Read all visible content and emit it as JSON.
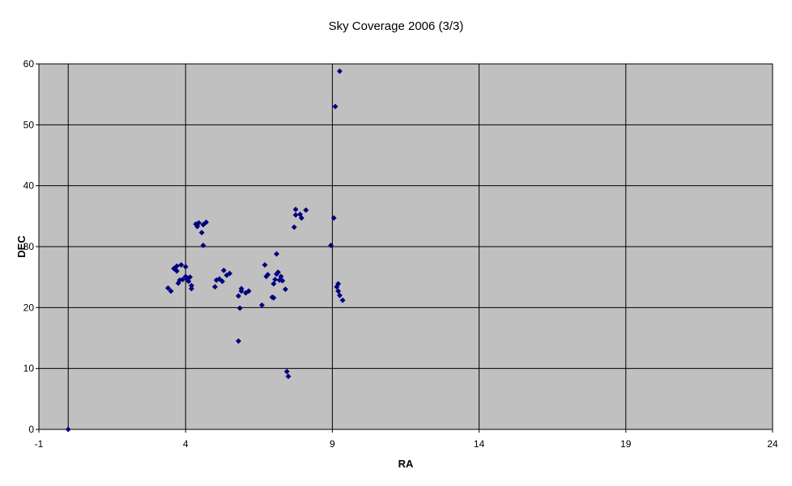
{
  "chart_data": {
    "type": "scatter",
    "title": "Sky Coverage 2006 (3/3)",
    "xlabel": "RA",
    "ylabel": "DEC",
    "xlim": [
      -1,
      24
    ],
    "ylim": [
      0,
      60
    ],
    "xticks": [
      -1,
      4,
      9,
      14,
      19,
      24
    ],
    "yticks": [
      0,
      10,
      20,
      30,
      40,
      50,
      60
    ],
    "grid": true,
    "plot_background": "#c0c0c0",
    "marker_color": "#000080",
    "marker": "diamond",
    "series": [
      {
        "points": [
          [
            0.0,
            0.0
          ],
          [
            3.4,
            23.2
          ],
          [
            3.5,
            22.7
          ],
          [
            3.6,
            26.4
          ],
          [
            3.7,
            26.8
          ],
          [
            3.7,
            26.0
          ],
          [
            3.75,
            24.0
          ],
          [
            3.8,
            24.5
          ],
          [
            3.85,
            27.0
          ],
          [
            3.9,
            24.6
          ],
          [
            4.0,
            26.7
          ],
          [
            4.0,
            25.1
          ],
          [
            4.05,
            24.8
          ],
          [
            4.1,
            24.3
          ],
          [
            4.15,
            25.0
          ],
          [
            4.2,
            23.6
          ],
          [
            4.2,
            23.1
          ],
          [
            4.35,
            33.7
          ],
          [
            4.4,
            33.3
          ],
          [
            4.45,
            33.9
          ],
          [
            4.55,
            32.3
          ],
          [
            4.6,
            33.6
          ],
          [
            4.6,
            30.2
          ],
          [
            4.7,
            34.0
          ],
          [
            5.0,
            23.4
          ],
          [
            5.05,
            24.5
          ],
          [
            5.15,
            24.7
          ],
          [
            5.25,
            24.3
          ],
          [
            5.3,
            26.1
          ],
          [
            5.4,
            25.3
          ],
          [
            5.5,
            25.6
          ],
          [
            5.8,
            14.5
          ],
          [
            5.8,
            21.9
          ],
          [
            5.85,
            19.9
          ],
          [
            5.9,
            22.7
          ],
          [
            5.9,
            23.1
          ],
          [
            6.05,
            22.4
          ],
          [
            6.15,
            22.7
          ],
          [
            6.6,
            20.4
          ],
          [
            6.7,
            27.0
          ],
          [
            6.75,
            25.1
          ],
          [
            6.8,
            25.4
          ],
          [
            6.95,
            21.7
          ],
          [
            7.0,
            21.6
          ],
          [
            7.0,
            23.9
          ],
          [
            7.05,
            24.6
          ],
          [
            7.1,
            28.8
          ],
          [
            7.1,
            25.5
          ],
          [
            7.15,
            25.8
          ],
          [
            7.2,
            24.5
          ],
          [
            7.25,
            25.1
          ],
          [
            7.3,
            24.4
          ],
          [
            7.4,
            23.0
          ],
          [
            7.45,
            9.5
          ],
          [
            7.5,
            8.7
          ],
          [
            7.7,
            33.2
          ],
          [
            7.75,
            36.1
          ],
          [
            7.75,
            35.2
          ],
          [
            7.9,
            35.3
          ],
          [
            7.95,
            34.7
          ],
          [
            8.1,
            36.0
          ],
          [
            8.95,
            30.2
          ],
          [
            9.05,
            34.7
          ],
          [
            9.1,
            53.0
          ],
          [
            9.15,
            23.4
          ],
          [
            9.2,
            22.7
          ],
          [
            9.2,
            23.9
          ],
          [
            9.25,
            22.0
          ],
          [
            9.25,
            58.8
          ],
          [
            9.35,
            21.2
          ]
        ]
      }
    ]
  }
}
